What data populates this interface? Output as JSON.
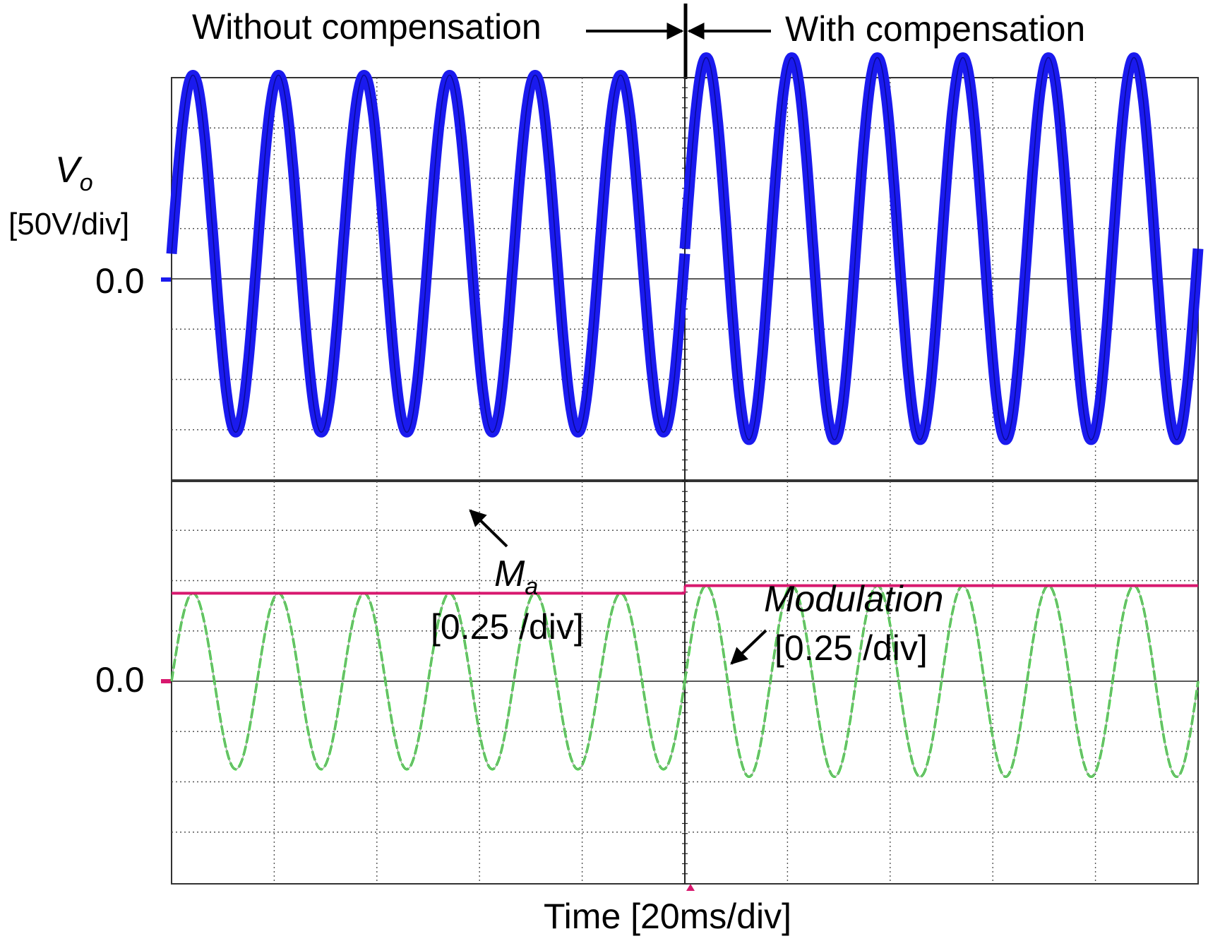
{
  "header": {
    "left_label": "Without compensation",
    "right_label": "With compensation"
  },
  "axis": {
    "vo_symbol": "V",
    "vo_subscript": "o",
    "vo_scale": "[50V/div]",
    "zero_top": "0.0",
    "zero_bottom": "0.0",
    "xlabel": "Time [20ms/div]"
  },
  "annotations": {
    "ma_symbol": "M",
    "ma_subscript": "a",
    "ma_scale": "[0.25 /div]",
    "modulation_name": "Modulation",
    "modulation_scale": "[0.25 /div]"
  },
  "colors": {
    "vo_trace": "#1a1aee",
    "ma_trace": "#d8186e",
    "modulation_trace": "#33dd33",
    "grid": "#555555",
    "frame": "#333333"
  },
  "chart_data": {
    "type": "line",
    "x_unit": "ms",
    "x_scale_per_div": 20,
    "x_range": [
      0,
      200
    ],
    "compensation_switch_time": 100,
    "frequency_hz": 60,
    "panels": [
      {
        "name": "Vo",
        "unit": "V",
        "scale_per_div": 50,
        "y_range_div": [
          -4,
          4
        ],
        "series": [
          {
            "name": "Vo",
            "segment": "without compensation",
            "t_range": [
              0,
              100
            ],
            "amplitude_div": 3.55,
            "offset_div": 0.5,
            "ripple_div": 0.25
          },
          {
            "name": "Vo",
            "segment": "with compensation",
            "t_range": [
              100,
              200
            ],
            "amplitude_div": 3.8,
            "offset_div": 0.6,
            "ripple_div": 0.25
          }
        ]
      },
      {
        "name": "Ma / Modulation",
        "unit": "/div",
        "scale_per_div": 0.25,
        "y_range_div": [
          -4,
          4
        ],
        "series": [
          {
            "name": "Ma",
            "segment": "without compensation",
            "t_range": [
              0,
              100
            ],
            "level_div": 1.75
          },
          {
            "name": "Ma",
            "segment": "with compensation",
            "t_range": [
              100,
              200
            ],
            "level_div": 1.9
          },
          {
            "name": "Modulation",
            "segment": "without compensation",
            "t_range": [
              0,
              100
            ],
            "amplitude_div": 1.75,
            "offset_div": 0.0
          },
          {
            "name": "Modulation",
            "segment": "with compensation",
            "t_range": [
              100,
              200
            ],
            "amplitude_div": 1.9,
            "offset_div": 0.0
          }
        ]
      }
    ]
  }
}
